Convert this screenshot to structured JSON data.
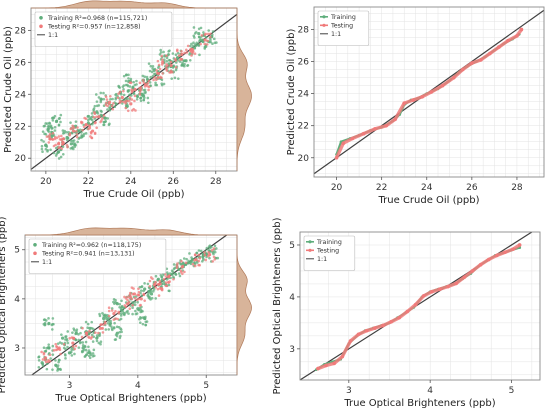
{
  "colors": {
    "training": "#5fae7c",
    "testing": "#f07a7a",
    "oneone": "#404040",
    "marginal_fill": "#d8b49a",
    "marginal_line": "#b07a5a",
    "grid": "#e3e3e3",
    "frame": "#8a8a8a"
  },
  "chart_data": [
    {
      "type": "scatter",
      "xlabel": "True Crude Oil (ppb)",
      "ylabel": "Predicted Crude Oil (ppb)",
      "xlim": [
        19.3,
        29.0
      ],
      "ylim": [
        19.2,
        29.4
      ],
      "xticks": [
        20,
        22,
        24,
        26,
        28
      ],
      "yticks": [
        20,
        22,
        24,
        26,
        28
      ],
      "legend": [
        "Training R²=0.968 (n=115,721)",
        "Testing  R²=0.957 (n=12,858)",
        "1:1"
      ],
      "legend_position": "top-left",
      "grid": true,
      "marginals": true,
      "series": [
        {
          "name": "Training",
          "points": [
            [
              20.0,
              20.8
            ],
            [
              20.3,
              21.6
            ],
            [
              20.6,
              20.4
            ],
            [
              21.0,
              21.3
            ],
            [
              21.4,
              22.0
            ],
            [
              21.7,
              21.4
            ],
            [
              22.0,
              22.2
            ],
            [
              22.4,
              22.9
            ],
            [
              22.8,
              22.5
            ],
            [
              23.1,
              23.3
            ],
            [
              23.5,
              24.1
            ],
            [
              23.8,
              23.6
            ],
            [
              24.1,
              24.4
            ],
            [
              24.5,
              24.0
            ],
            [
              24.8,
              24.9
            ],
            [
              25.1,
              25.5
            ],
            [
              25.4,
              25.0
            ],
            [
              25.8,
              25.9
            ],
            [
              26.2,
              26.3
            ],
            [
              26.6,
              26.1
            ],
            [
              27.0,
              26.9
            ],
            [
              27.4,
              27.3
            ],
            [
              27.8,
              27.6
            ],
            [
              20.1,
              21.8
            ],
            [
              21.2,
              20.9
            ],
            [
              22.6,
              23.7
            ],
            [
              23.9,
              24.8
            ],
            [
              24.6,
              23.9
            ],
            [
              25.6,
              26.4
            ],
            [
              26.0,
              25.4
            ],
            [
              27.2,
              27.8
            ],
            [
              20.5,
              22.3
            ]
          ]
        },
        {
          "name": "Testing",
          "points": [
            [
              20.2,
              21.2
            ],
            [
              20.8,
              21.0
            ],
            [
              21.3,
              21.7
            ],
            [
              21.9,
              22.1
            ],
            [
              22.5,
              22.6
            ],
            [
              23.0,
              23.5
            ],
            [
              23.6,
              23.8
            ],
            [
              24.2,
              24.3
            ],
            [
              24.7,
              24.6
            ],
            [
              25.3,
              25.3
            ],
            [
              25.9,
              25.8
            ],
            [
              26.4,
              26.5
            ],
            [
              26.9,
              26.8
            ],
            [
              27.5,
              27.4
            ],
            [
              22.2,
              21.7
            ],
            [
              24.0,
              23.4
            ],
            [
              25.5,
              26.0
            ],
            [
              20.6,
              20.9
            ]
          ]
        }
      ]
    },
    {
      "type": "line",
      "xlabel": "True Crude Oil (ppb)",
      "ylabel": "Predicted Crude Oil (ppb)",
      "xlim": [
        19.0,
        29.2
      ],
      "ylim": [
        18.8,
        29.4
      ],
      "xticks": [
        20,
        22,
        24,
        26,
        28
      ],
      "yticks": [
        20,
        22,
        24,
        26,
        28
      ],
      "legend": [
        "Training",
        "Testing",
        "1:1"
      ],
      "legend_position": "top-left",
      "grid": true,
      "series": [
        {
          "name": "Training",
          "points": [
            [
              20.0,
              20.2
            ],
            [
              20.2,
              21.0
            ],
            [
              20.6,
              21.2
            ],
            [
              21.0,
              21.4
            ],
            [
              21.5,
              21.7
            ],
            [
              22.0,
              21.9
            ],
            [
              22.5,
              22.3
            ],
            [
              22.8,
              22.7
            ],
            [
              23.0,
              23.3
            ],
            [
              23.3,
              23.6
            ],
            [
              23.6,
              23.7
            ],
            [
              24.0,
              24.0
            ],
            [
              24.5,
              24.3
            ],
            [
              25.0,
              24.8
            ],
            [
              25.4,
              25.3
            ],
            [
              25.8,
              25.7
            ],
            [
              26.2,
              26.0
            ],
            [
              26.6,
              26.3
            ],
            [
              27.0,
              26.7
            ],
            [
              27.4,
              27.1
            ],
            [
              27.8,
              27.4
            ],
            [
              28.1,
              27.7
            ]
          ]
        },
        {
          "name": "Testing",
          "points": [
            [
              20.0,
              20.0
            ],
            [
              20.3,
              20.9
            ],
            [
              20.7,
              21.2
            ],
            [
              21.2,
              21.5
            ],
            [
              21.7,
              21.8
            ],
            [
              22.2,
              22.0
            ],
            [
              22.6,
              22.4
            ],
            [
              23.0,
              23.4
            ],
            [
              23.4,
              23.6
            ],
            [
              23.8,
              23.8
            ],
            [
              24.2,
              24.1
            ],
            [
              24.7,
              24.5
            ],
            [
              25.2,
              25.0
            ],
            [
              25.6,
              25.5
            ],
            [
              26.0,
              25.9
            ],
            [
              26.4,
              26.1
            ],
            [
              26.8,
              26.5
            ],
            [
              27.2,
              26.9
            ],
            [
              27.6,
              27.3
            ],
            [
              28.0,
              27.6
            ],
            [
              28.2,
              28.0
            ]
          ]
        }
      ]
    },
    {
      "type": "scatter",
      "xlabel": "True Optical Brighteners (ppb)",
      "ylabel": "Predicted Optical Brighteners (ppb)",
      "xlim": [
        2.35,
        5.45
      ],
      "ylim": [
        2.45,
        5.3
      ],
      "xticks": [
        3,
        4,
        5
      ],
      "yticks": [
        3,
        4,
        5
      ],
      "legend": [
        "Training R²=0.962 (n=118,175)",
        "Testing  R²=0.941 (n=13,131)",
        "1:1"
      ],
      "legend_position": "top-left",
      "grid": true,
      "marginals": true,
      "series": [
        {
          "name": "Training",
          "points": [
            [
              2.6,
              2.7
            ],
            [
              2.7,
              3.0
            ],
            [
              2.8,
              2.65
            ],
            [
              2.9,
              3.2
            ],
            [
              3.0,
              2.9
            ],
            [
              3.1,
              3.3
            ],
            [
              3.2,
              3.0
            ],
            [
              3.3,
              3.4
            ],
            [
              3.4,
              3.2
            ],
            [
              3.5,
              3.6
            ],
            [
              3.6,
              3.5
            ],
            [
              3.7,
              3.9
            ],
            [
              3.8,
              3.7
            ],
            [
              3.9,
              4.0
            ],
            [
              4.0,
              3.8
            ],
            [
              4.1,
              4.2
            ],
            [
              4.2,
              4.1
            ],
            [
              4.3,
              4.4
            ],
            [
              4.4,
              4.3
            ],
            [
              4.5,
              4.5
            ],
            [
              4.6,
              4.6
            ],
            [
              4.7,
              4.7
            ],
            [
              4.8,
              4.8
            ],
            [
              4.9,
              4.85
            ],
            [
              5.0,
              4.9
            ],
            [
              5.1,
              4.95
            ],
            [
              3.3,
              2.9
            ],
            [
              3.7,
              3.3
            ],
            [
              4.1,
              3.6
            ],
            [
              2.7,
              3.5
            ]
          ]
        },
        {
          "name": "Testing",
          "points": [
            [
              2.65,
              2.8
            ],
            [
              2.85,
              3.0
            ],
            [
              3.05,
              3.1
            ],
            [
              3.25,
              3.3
            ],
            [
              3.45,
              3.4
            ],
            [
              3.65,
              3.7
            ],
            [
              3.85,
              3.9
            ],
            [
              4.05,
              4.0
            ],
            [
              4.25,
              4.3
            ],
            [
              4.45,
              4.45
            ],
            [
              4.65,
              4.65
            ],
            [
              4.85,
              4.8
            ],
            [
              5.05,
              4.9
            ],
            [
              4.35,
              4.2
            ],
            [
              3.95,
              4.1
            ]
          ]
        }
      ]
    },
    {
      "type": "line",
      "xlabel": "True Optical Brighteners (ppb)",
      "ylabel": "Predicted Optical Brighteners (ppb)",
      "xlim": [
        2.4,
        5.35
      ],
      "ylim": [
        2.4,
        5.25
      ],
      "xticks": [
        3,
        4,
        5
      ],
      "yticks": [
        3,
        4,
        5
      ],
      "legend": [
        "Training",
        "Testing",
        "1:1"
      ],
      "legend_position": "top-left",
      "grid": true,
      "series": [
        {
          "name": "Training",
          "points": [
            [
              2.6,
              2.6
            ],
            [
              2.7,
              2.7
            ],
            [
              2.8,
              2.75
            ],
            [
              2.9,
              2.8
            ],
            [
              3.0,
              3.1
            ],
            [
              3.1,
              3.25
            ],
            [
              3.2,
              3.35
            ],
            [
              3.3,
              3.4
            ],
            [
              3.4,
              3.45
            ],
            [
              3.5,
              3.5
            ],
            [
              3.6,
              3.6
            ],
            [
              3.7,
              3.7
            ],
            [
              3.8,
              3.8
            ],
            [
              3.9,
              4.0
            ],
            [
              4.0,
              4.1
            ],
            [
              4.1,
              4.15
            ],
            [
              4.2,
              4.2
            ],
            [
              4.3,
              4.25
            ],
            [
              4.4,
              4.35
            ],
            [
              4.5,
              4.45
            ],
            [
              4.6,
              4.6
            ],
            [
              4.7,
              4.7
            ],
            [
              4.8,
              4.8
            ],
            [
              4.9,
              4.85
            ],
            [
              5.0,
              4.9
            ],
            [
              5.1,
              4.95
            ]
          ]
        },
        {
          "name": "Testing",
          "points": [
            [
              2.62,
              2.62
            ],
            [
              2.72,
              2.68
            ],
            [
              2.82,
              2.72
            ],
            [
              2.92,
              2.85
            ],
            [
              3.02,
              3.15
            ],
            [
              3.12,
              3.28
            ],
            [
              3.22,
              3.35
            ],
            [
              3.32,
              3.4
            ],
            [
              3.42,
              3.45
            ],
            [
              3.52,
              3.52
            ],
            [
              3.62,
              3.6
            ],
            [
              3.72,
              3.72
            ],
            [
              3.82,
              3.85
            ],
            [
              3.92,
              4.02
            ],
            [
              4.02,
              4.1
            ],
            [
              4.12,
              4.15
            ],
            [
              4.22,
              4.2
            ],
            [
              4.32,
              4.26
            ],
            [
              4.42,
              4.38
            ],
            [
              4.52,
              4.5
            ],
            [
              4.62,
              4.62
            ],
            [
              4.72,
              4.72
            ],
            [
              4.82,
              4.8
            ],
            [
              4.92,
              4.86
            ],
            [
              5.02,
              4.92
            ],
            [
              5.1,
              5.0
            ]
          ]
        }
      ]
    }
  ]
}
